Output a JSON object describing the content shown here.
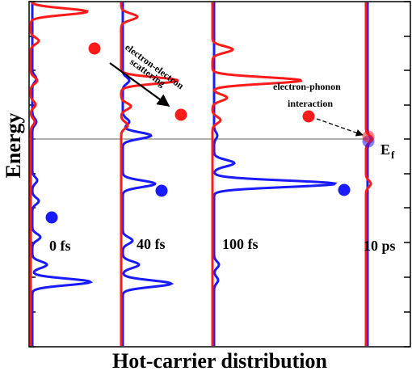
{
  "chart_data": {
    "type": "line",
    "title": "",
    "xlabel": "Hot-carrier distribution",
    "ylabel": "Energy",
    "fermi_level_label": "E",
    "fermi_level_subscript": "f",
    "fermi_level_energy": 0,
    "energy_range": [
      -1,
      1
    ],
    "colors": {
      "electrons": "#ff1a1a",
      "holes": "#1a1aff",
      "axis": "#000000",
      "fermi_line": "#666666"
    },
    "panels": [
      {
        "time_label": "0 fs",
        "red_peaks": [
          {
            "energy": 0.74,
            "height": 70
          },
          {
            "energy": 0.93,
            "height": 12
          },
          {
            "energy": 0.57,
            "height": 10
          },
          {
            "energy": 0.34,
            "height": 8
          },
          {
            "energy": 0.2,
            "height": 6
          },
          {
            "energy": 0.1,
            "height": 5
          }
        ],
        "blue_peaks": [
          {
            "energy": -0.83,
            "height": 72
          },
          {
            "energy": -0.73,
            "height": 18
          },
          {
            "energy": -0.57,
            "height": 10
          },
          {
            "energy": -0.36,
            "height": 8
          },
          {
            "energy": -0.24,
            "height": 6
          },
          {
            "energy": 0.35,
            "height": 5
          },
          {
            "energy": 0.1,
            "height": 5
          }
        ],
        "marker_red": {
          "energy": 0.74,
          "distribution": 80
        },
        "marker_blue": {
          "energy": -0.36,
          "distribution": 28
        }
      },
      {
        "time_label": "40 fs",
        "red_peaks": [
          {
            "energy": 0.34,
            "height": 70
          },
          {
            "energy": 0.71,
            "height": 20
          },
          {
            "energy": 0.92,
            "height": 12
          },
          {
            "energy": 0.19,
            "height": 12
          },
          {
            "energy": 0.08,
            "height": 8
          }
        ],
        "blue_peaks": [
          {
            "energy": -0.84,
            "height": 60
          },
          {
            "energy": -0.73,
            "height": 20
          },
          {
            "energy": -0.59,
            "height": 12
          },
          {
            "energy": -0.26,
            "height": 40
          },
          {
            "energy": 0.02,
            "height": 35
          },
          {
            "energy": 0.34,
            "height": 8
          },
          {
            "energy": 0.1,
            "height": 8
          }
        ],
        "marker_red": {
          "energy": 0.34,
          "distribution": 75
        },
        "marker_blue": {
          "energy": -0.26,
          "distribution": 50
        }
      },
      {
        "time_label": "100 fs",
        "red_peaks": [
          {
            "energy": 0.34,
            "height": 110
          },
          {
            "energy": 0.52,
            "height": 25
          },
          {
            "energy": 0.24,
            "height": 18
          },
          {
            "energy": 0.11,
            "height": 10
          }
        ],
        "blue_peaks": [
          {
            "energy": -0.26,
            "height": 150
          },
          {
            "energy": -0.14,
            "height": 25
          },
          {
            "energy": -0.73,
            "height": 6
          },
          {
            "energy": -0.82,
            "height": 5
          },
          {
            "energy": 0.02,
            "height": 4
          }
        ],
        "marker_red": {
          "energy": 0.34,
          "distribution": 120
        },
        "marker_blue": {
          "energy": -0.26,
          "distribution": 165
        }
      },
      {
        "time_label": "10 ps",
        "red_peaks": [
          {
            "energy": 0.0,
            "height": 8
          },
          {
            "energy": -0.26,
            "height": 6
          }
        ],
        "blue_peaks": [
          {
            "energy": 0.0,
            "height": 4
          }
        ],
        "marker_red": {
          "energy": 0.0,
          "distribution": 0
        },
        "marker_blue": {
          "energy": 0.0,
          "distribution": 0
        }
      }
    ],
    "annotations": [
      {
        "text": "electron-electron",
        "from_panel": 0,
        "to_panel": 1
      },
      {
        "text": "scattering",
        "from_panel": 0,
        "to_panel": 1
      },
      {
        "text": "electron-phonon",
        "from_panel": 2,
        "to_panel": 3
      },
      {
        "text": "interaction",
        "from_panel": 2,
        "to_panel": 3
      }
    ]
  }
}
